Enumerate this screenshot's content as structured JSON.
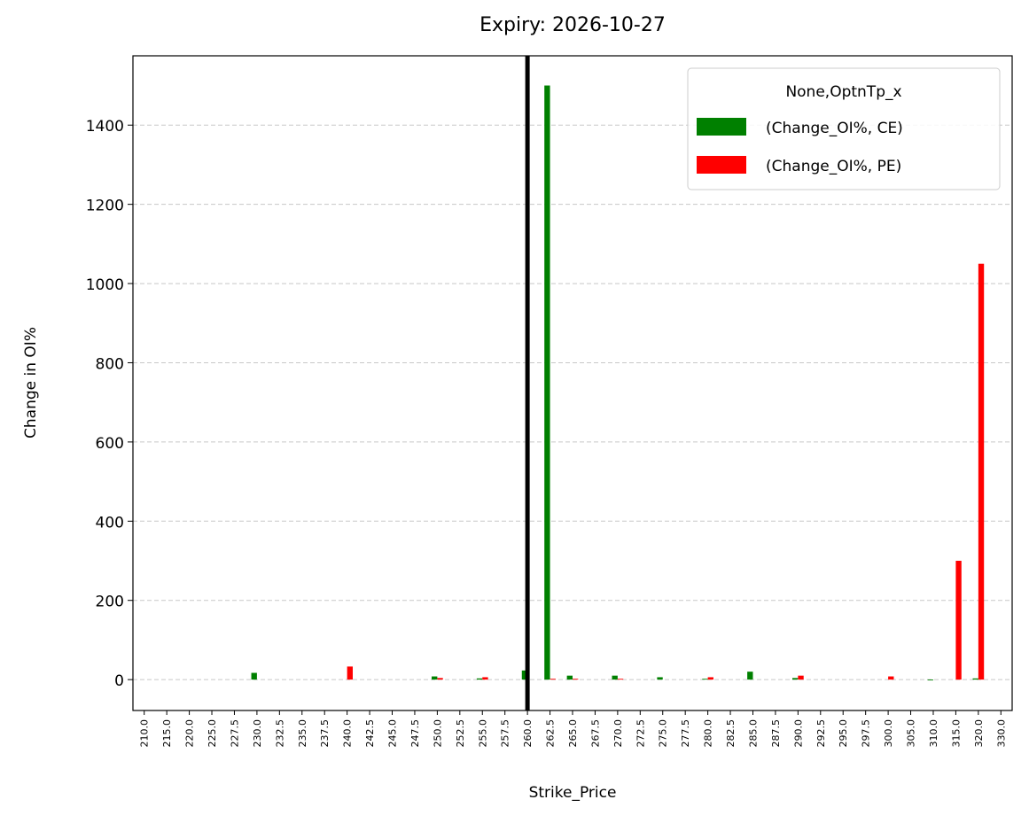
{
  "chart_data": {
    "type": "bar",
    "title": "Expiry: 2026-10-27",
    "x_label": "Strike_Price",
    "y_label": "Change in OI%",
    "legend_title": "None,OptnTp_x",
    "legend_position": "upper right",
    "grid": true,
    "vline_category": "260.0",
    "categories": [
      "210.0",
      "215.0",
      "220.0",
      "225.0",
      "227.5",
      "230.0",
      "232.5",
      "235.0",
      "237.5",
      "240.0",
      "242.5",
      "245.0",
      "247.5",
      "250.0",
      "252.5",
      "255.0",
      "257.5",
      "260.0",
      "262.5",
      "265.0",
      "267.5",
      "270.0",
      "272.5",
      "275.0",
      "277.5",
      "280.0",
      "282.5",
      "285.0",
      "287.5",
      "290.0",
      "292.5",
      "295.0",
      "297.5",
      "300.0",
      "305.0",
      "310.0",
      "315.0",
      "320.0",
      "330.0"
    ],
    "series": [
      {
        "name": "(Change_OI%, CE)",
        "color": "#008000",
        "values": [
          null,
          null,
          null,
          null,
          null,
          17,
          null,
          null,
          null,
          null,
          null,
          null,
          null,
          8,
          null,
          3,
          null,
          23,
          1500,
          10,
          null,
          10,
          null,
          6,
          null,
          2,
          null,
          20,
          null,
          4,
          null,
          null,
          null,
          null,
          null,
          -2,
          null,
          3,
          null
        ]
      },
      {
        "name": "(Change_OI%, PE)",
        "color": "#ff0000",
        "values": [
          null,
          null,
          null,
          null,
          null,
          null,
          null,
          null,
          null,
          33,
          null,
          null,
          null,
          4,
          null,
          6,
          null,
          null,
          2,
          2,
          null,
          2,
          null,
          null,
          null,
          6,
          null,
          null,
          null,
          10,
          null,
          null,
          null,
          8,
          null,
          null,
          300,
          1050,
          null
        ]
      }
    ],
    "ylim": [
      -78,
      1575
    ],
    "yticks": [
      0,
      200,
      400,
      600,
      800,
      1000,
      1200,
      1400
    ]
  }
}
